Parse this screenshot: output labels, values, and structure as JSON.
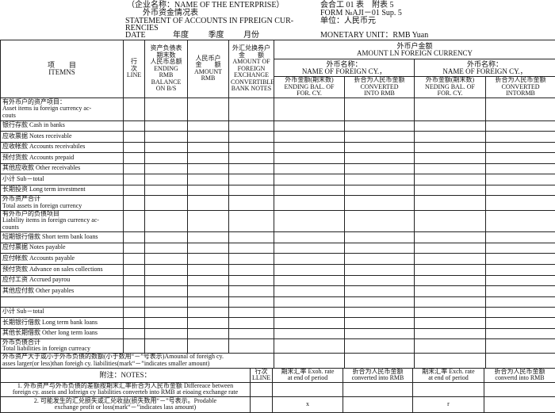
{
  "header": {
    "enterprise": "（企业名称：NAME OF THE ENTERPRISE）",
    "title_cn": "外币资金情况表",
    "title_en": "STATEMENT OF ACCOUNTS IN FPREIGN CUR-",
    "title_en2": "RENCIES",
    "date": "DATE",
    "year": "年度",
    "quarter": "季度",
    "month": "月份",
    "form_cn": "会合工 01 表　附表 5",
    "form_en": "FORM №AJI－01 Sup. 5",
    "unit_cn": "单位：人民币元",
    "unit_en": "MONETARY UNIT：RMB Yuan"
  },
  "columns": {
    "items": [
      "项　　目",
      "ITEMNS"
    ],
    "line": [
      "行",
      "次",
      "LINE"
    ],
    "ending": [
      "资产负债表",
      "期末数",
      "人民币总额",
      "ENDING RMB",
      "BALANCE",
      "ON B/S"
    ],
    "rmb": [
      "人民币户",
      "金　　额",
      "AMOUNT",
      "RMB"
    ],
    "fx": [
      "外汇兑换券户",
      "金　　额",
      "AMOUNT OF",
      "FOREIGN",
      "EXCHANGE",
      "CONVERTIBLE",
      "BANK NOTES"
    ],
    "foreign": [
      "外币户金额",
      "AMOUNT LN FOREIGN CURRENCY"
    ],
    "name1": [
      "外币名称：",
      "NAME OF FOREIGN CY.，"
    ],
    "name2": [
      "外币名称：",
      "NAME OF FOREIGN CY.，"
    ],
    "sub1": [
      "外币金额(期末数)",
      "ENDING BAL. OF",
      "FOR. CY."
    ],
    "sub2": [
      "折合为人民币金额",
      "CONVERTED",
      "INTO RMB"
    ],
    "sub3": [
      "外币金额(期末数)",
      "NEDING BAL. OF",
      "FOR. CY."
    ],
    "sub4": [
      "折合为人民币金额",
      "CONVERTED",
      "INTORMB"
    ]
  },
  "rows": [
    [
      "有外币户的资产项目：",
      "Asset items iu foreign currency ac-",
      "couts"
    ],
    [
      "银行存款 Cash in banks"
    ],
    [
      "应收票据 Notes receivable"
    ],
    [
      "应收帐款 Accounts receivabiles"
    ],
    [
      "预付货款 Accounts prepaid"
    ],
    [
      "其他应收款 Other receivables"
    ],
    [
      "小计 Sub－total"
    ],
    [
      "长期投资 Long term investment"
    ],
    [
      "外币资产合计",
      "Total assets in foreign currency"
    ],
    [
      "有外币户的负债项目",
      "Liability items in foreign currency ac-",
      "counts"
    ],
    [
      "短期银行借款 Short term bank loans"
    ],
    [
      "应付票据 Notes payable"
    ],
    [
      "应付帐款 Accounts payable"
    ],
    [
      "预付货款 Advance on sales collections"
    ],
    [
      "应付工资 Accrued payrou"
    ],
    [
      "其他应付款 Other payables"
    ],
    [
      ""
    ],
    [
      "小计 Sub－total"
    ],
    [
      "长期银行借款 Long term bank loans"
    ],
    [
      "其他长期借款 Other long term loans"
    ],
    [
      "外币负债合计",
      "Total liabilities in foreign curreacy"
    ]
  ],
  "difference": [
    "外币资产大于或小于外币负债的数额(小于数用“－”号表示)Amounal of foreigh cy.",
    "asses larger(or less)than foreigh cy. liabilities(mark“－”indicates smaller amount)"
  ],
  "notes": {
    "title": "附注：NOTES：",
    "line": [
      "行次",
      "LLINE"
    ],
    "h1": [
      "期末汇率 Exoh. rate",
      "at end of period"
    ],
    "h2": [
      "折合为人民币金额",
      "converted into RMB"
    ],
    "h3": [
      "期末汇率 Exch. rate",
      "at end of period"
    ],
    "h4": [
      "折合为人民币金额",
      "convertd into RMB"
    ],
    "n1": [
      "1. 外币资产与外币负债的差额按期末汇率折合为人民币金额 Differeace between",
      "foreign cy. asseis and lofreign cy liabilities converteb into RMB at eioaing exchange rate"
    ],
    "n2": [
      "2. 可能发生的汇兑损失或汇兑收益(损失数用“－”号表示。Prodable",
      "exchange profit or loss(mark“－”indicates lass amount)"
    ],
    "mark1": "x",
    "mark2": "r"
  }
}
